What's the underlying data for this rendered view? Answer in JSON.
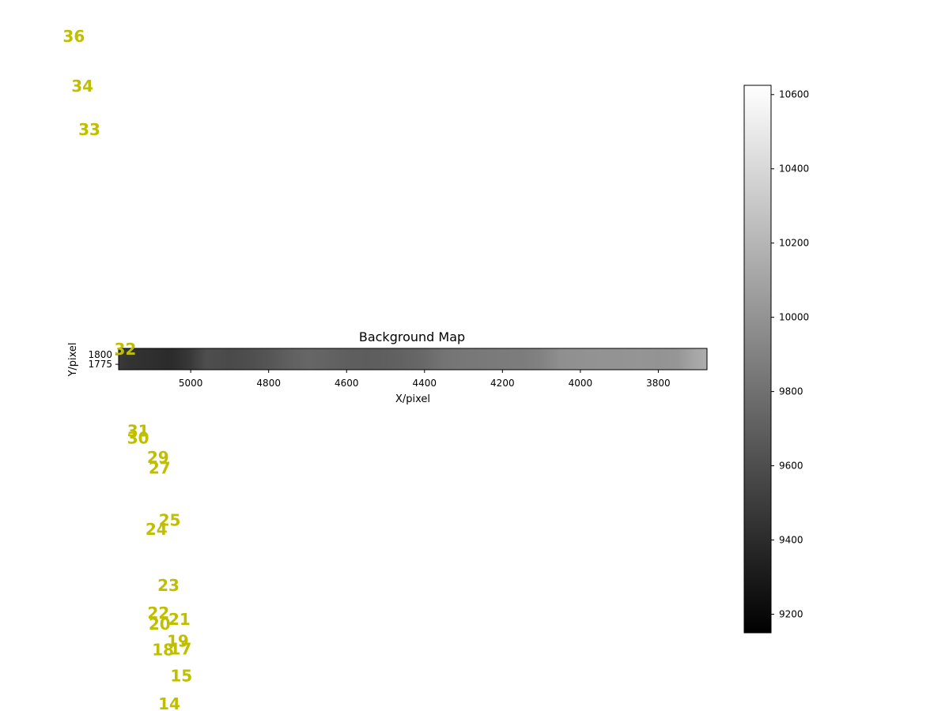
{
  "chart_data": {
    "type": "heatmap",
    "title": "Background Map",
    "xlabel": "X/pixel",
    "ylabel": "Y/pixel",
    "colormap": "gray",
    "xlim": [
      5185,
      3675
    ],
    "ylim": [
      1761,
      1816
    ],
    "x_ticks": [
      5000,
      4800,
      4600,
      4400,
      4200,
      4000,
      3800
    ],
    "y_ticks": [
      1775,
      1800
    ],
    "profile": {
      "x": [
        5185,
        5150,
        5100,
        5060,
        5040,
        5000,
        4960,
        4900,
        4850,
        4800,
        4750,
        4700,
        4650,
        4600,
        4550,
        4500,
        4450,
        4400,
        4350,
        4300,
        4250,
        4200,
        4150,
        4100,
        4050,
        4000,
        3950,
        3900,
        3850,
        3800,
        3750,
        3720,
        3700,
        3675
      ],
      "values": [
        9480,
        9440,
        9420,
        9400,
        9410,
        9480,
        9600,
        9580,
        9600,
        9640,
        9700,
        9740,
        9720,
        9700,
        9690,
        9700,
        9720,
        9760,
        9820,
        9840,
        9850,
        9860,
        9870,
        9900,
        9980,
        9990,
        10000,
        10000,
        10010,
        10000,
        10020,
        10080,
        10120,
        10150
      ]
    },
    "colorbar": {
      "range": [
        9150,
        10625
      ],
      "ticks": [
        9200,
        9400,
        9600,
        9800,
        10000,
        10200,
        10400,
        10600
      ]
    },
    "annotation_color": "#bfbf00",
    "annotations": [
      {
        "label": "36",
        "x": 5300,
        "y": 2606
      },
      {
        "label": "34",
        "x": 5278,
        "y": 2478
      },
      {
        "label": "33",
        "x": 5260,
        "y": 2366
      },
      {
        "label": "32",
        "x": 5168,
        "y": 1800
      },
      {
        "label": "31",
        "x": 5135,
        "y": 1589
      },
      {
        "label": "30",
        "x": 5135,
        "y": 1571
      },
      {
        "label": "29",
        "x": 5084,
        "y": 1521
      },
      {
        "label": "27",
        "x": 5080,
        "y": 1493
      },
      {
        "label": "25",
        "x": 5054,
        "y": 1359
      },
      {
        "label": "24",
        "x": 5088,
        "y": 1335
      },
      {
        "label": "23",
        "x": 5057,
        "y": 1191
      },
      {
        "label": "22",
        "x": 5083,
        "y": 1119
      },
      {
        "label": "21",
        "x": 5029,
        "y": 1103
      },
      {
        "label": "20",
        "x": 5080,
        "y": 1091
      },
      {
        "label": "19",
        "x": 5033,
        "y": 1047
      },
      {
        "label": "18",
        "x": 5071,
        "y": 1025
      },
      {
        "label": "17",
        "x": 5026,
        "y": 1027
      },
      {
        "label": "15",
        "x": 5024,
        "y": 957
      },
      {
        "label": "14",
        "x": 5055,
        "y": 885
      }
    ]
  }
}
